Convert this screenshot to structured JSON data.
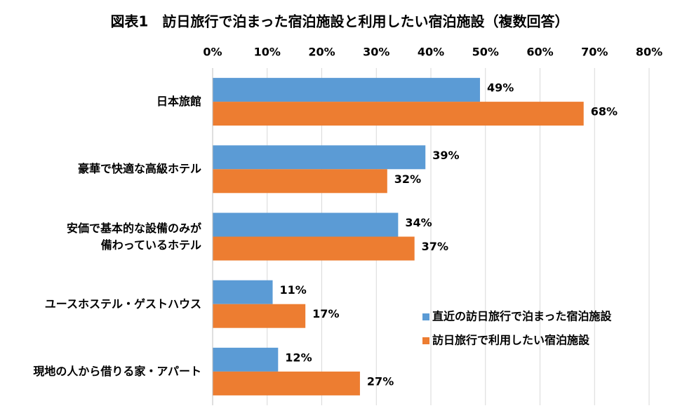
{
  "chart_data": {
    "type": "hbar",
    "title": "図表1　訪日旅行で泊まった宿泊施設と利用したい宿泊施設（複数回答）",
    "categories": [
      "日本旅館",
      "豪華で快適な高級ホテル",
      "安価で基本的な設備のみが\n備わっているホテル",
      "ユースホステル・ゲストハウス",
      "現地の人から借りる家・アパート"
    ],
    "series": [
      {
        "name": "直近の訪日旅行で泊まった宿泊施設",
        "color": "#5b9bd5",
        "values": [
          49,
          39,
          34,
          11,
          12
        ],
        "value_labels": [
          "49%",
          "39%",
          "34%",
          "11%",
          "12%"
        ]
      },
      {
        "name": "訪日旅行で利用したい宿泊施設",
        "color": "#ed7d31",
        "values": [
          68,
          32,
          37,
          17,
          27
        ],
        "value_labels": [
          "68%",
          "32%",
          "37%",
          "17%",
          "27%"
        ]
      }
    ],
    "xlim": [
      0,
      80
    ],
    "xticks": [
      {
        "value": 0,
        "label": "0%"
      },
      {
        "value": 10,
        "label": "10%"
      },
      {
        "value": 20,
        "label": "20%"
      },
      {
        "value": 30,
        "label": "30%"
      },
      {
        "value": 40,
        "label": "40%"
      },
      {
        "value": 50,
        "label": "50%"
      },
      {
        "value": 60,
        "label": "60%"
      },
      {
        "value": 70,
        "label": "70%"
      },
      {
        "value": 80,
        "label": "80%"
      }
    ],
    "grid": true,
    "legend": "lower-right"
  }
}
